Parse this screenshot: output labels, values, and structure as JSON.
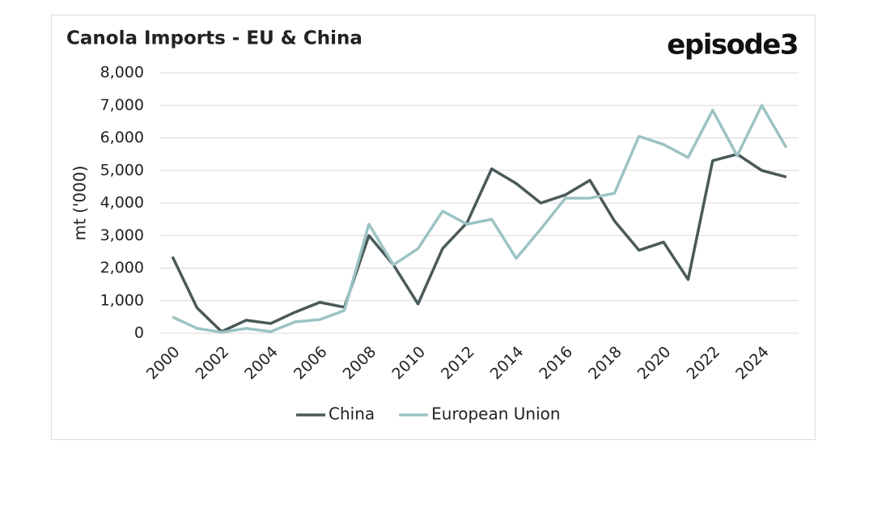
{
  "chart_data": {
    "type": "line",
    "title": "Canola Imports - EU & China",
    "brand": "episode3",
    "y_label": "mt ('000)",
    "x": [
      2000,
      2001,
      2002,
      2003,
      2004,
      2005,
      2006,
      2007,
      2008,
      2009,
      2010,
      2011,
      2012,
      2013,
      2014,
      2015,
      2016,
      2017,
      2018,
      2019,
      2020,
      2021,
      2022,
      2023,
      2024,
      2025
    ],
    "series": [
      {
        "name": "China",
        "color": "#4a5959",
        "values": [
          2350,
          780,
          50,
          400,
          300,
          650,
          950,
          800,
          3000,
          2100,
          900,
          2600,
          3400,
          5050,
          4600,
          4000,
          4250,
          4700,
          3450,
          2550,
          2800,
          1650,
          5300,
          5500,
          5000,
          4800
        ]
      },
      {
        "name": "European Union",
        "color": "#9cc3c4",
        "values": [
          500,
          150,
          30,
          150,
          50,
          350,
          420,
          700,
          3350,
          2100,
          2600,
          3750,
          3350,
          3500,
          2300,
          3200,
          4150,
          4150,
          4300,
          6050,
          5800,
          5400,
          6850,
          5450,
          7000,
          5700
        ]
      }
    ],
    "xlim": [
      1999.5,
      2025.5
    ],
    "xticks": [
      2000,
      2002,
      2004,
      2006,
      2008,
      2010,
      2012,
      2014,
      2016,
      2018,
      2020,
      2022,
      2024
    ],
    "ylim": [
      0,
      8000
    ],
    "yticks": [
      0,
      {
        "value": 1000,
        "label": "1,000"
      },
      {
        "value": 2000,
        "label": "2,000"
      },
      {
        "value": 3000,
        "label": "3,000"
      },
      {
        "value": 4000,
        "label": "4,000"
      },
      {
        "value": 5000,
        "label": "5,000"
      },
      {
        "value": 6000,
        "label": "6,000"
      },
      {
        "value": 7000,
        "label": "7,000"
      },
      {
        "value": 8000,
        "label": "8,000"
      }
    ],
    "grid": true,
    "legend": "bottom"
  }
}
